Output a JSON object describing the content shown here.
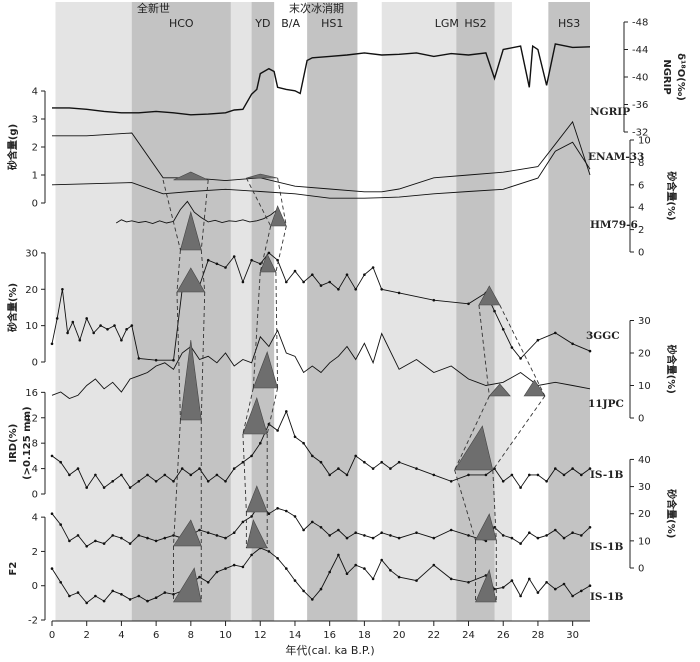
{
  "chart_data": {
    "type": "line",
    "x_axis": {
      "label": "年代(cal. ka B.P.)",
      "ticks": [
        0,
        2,
        4,
        6,
        8,
        10,
        12,
        14,
        16,
        18,
        20,
        22,
        24,
        26,
        28,
        30
      ],
      "range": [
        0,
        31
      ]
    },
    "top_group_labels": [
      "全新世",
      "末次冰消期"
    ],
    "bands": [
      {
        "label": "HCO",
        "from": 4.6,
        "to": 10.3,
        "shade": "dark"
      },
      {
        "label": "YD",
        "from": 11.5,
        "to": 12.8,
        "shade": "dark"
      },
      {
        "label": "B/A",
        "from": 12.8,
        "to": 14.7,
        "shade": "none"
      },
      {
        "label": "HS1",
        "from": 14.7,
        "to": 17.6,
        "shade": "dark"
      },
      {
        "label": "LGM",
        "from": 19.0,
        "to": 26.5,
        "shade": "light"
      },
      {
        "label": "HS2",
        "from": 23.3,
        "to": 25.5,
        "shade": "dark"
      },
      {
        "label": "HS3",
        "from": 28.6,
        "to": 31.0,
        "shade": "dark"
      }
    ],
    "holocene_span": [
      0.2,
      11.5
    ],
    "panels": [
      {
        "id": "ngrip",
        "core_label": "NGRIP",
        "axis_title_1": "NGRIP",
        "axis_title_2": "δ¹⁸O(‰)",
        "axis_side": "right",
        "ticks": [
          -32,
          -36,
          -40,
          -44,
          -48
        ],
        "range": [
          -32,
          -48
        ],
        "x": [
          0,
          1,
          2,
          3,
          4,
          5,
          6,
          7,
          8,
          9,
          10,
          10.5,
          11,
          11.5,
          11.8,
          12,
          12.5,
          12.8,
          13,
          13.5,
          14,
          14.3,
          14.7,
          15,
          16,
          17,
          18,
          19,
          20,
          21,
          22,
          23,
          24,
          25,
          25.5,
          26,
          27,
          27.5,
          27.7,
          28,
          28.5,
          29,
          30,
          31
        ],
        "y": [
          -35.5,
          -35.5,
          -35.3,
          -35,
          -34.8,
          -34.8,
          -35,
          -34.8,
          -34.5,
          -34.6,
          -34.8,
          -35.2,
          -35.3,
          -37.5,
          -38.2,
          -40.5,
          -41.2,
          -40.8,
          -38.5,
          -38.2,
          -38.0,
          -37.6,
          -42.4,
          -42.8,
          -43,
          -43.2,
          -43.5,
          -43.2,
          -43.3,
          -43.5,
          -43.0,
          -43.4,
          -43.2,
          -43.5,
          -39.8,
          -44,
          -44.5,
          -38.5,
          -44.5,
          -44,
          -38.8,
          -44.8,
          -44.3,
          -44.4
        ]
      },
      {
        "id": "enam33",
        "core_label": "ENAM-33",
        "axis_side": "right",
        "axis_title": "砂含量(%)",
        "ticks": [
          0,
          2,
          4,
          6,
          8,
          10
        ],
        "range": [
          0,
          10
        ],
        "x": [
          0,
          4.6,
          6.4,
          8,
          10,
          12,
          14,
          16,
          18,
          20,
          22,
          24,
          26,
          28,
          29,
          30,
          31
        ],
        "y": [
          6.0,
          6.2,
          5.2,
          5.4,
          5.6,
          5.4,
          5.2,
          4.8,
          4.8,
          4.9,
          5.2,
          5.4,
          5.6,
          6.6,
          9.0,
          9.8,
          7.4
        ]
      },
      {
        "id": "enam33_left",
        "axis_side": "left",
        "axis_title": "砂含量(g)",
        "ticks": [
          0,
          1,
          2,
          3,
          4
        ],
        "range": [
          0,
          4
        ],
        "x": [
          0,
          2,
          4.6,
          6.4,
          8,
          10,
          12,
          14,
          16,
          18,
          19,
          20,
          22,
          24,
          26,
          28,
          29,
          30,
          31
        ],
        "y": [
          2.4,
          2.4,
          2.5,
          0.9,
          0.9,
          0.8,
          0.9,
          0.6,
          0.5,
          0.4,
          0.4,
          0.5,
          0.9,
          1.0,
          1.1,
          1.3,
          2.1,
          2.9,
          1.0
        ]
      },
      {
        "id": "hm796",
        "core_label": "HM79-6",
        "axis_side": "none",
        "x": [
          3.7,
          4,
          4.3,
          4.6,
          5,
          5.4,
          5.8,
          6.2,
          6.6,
          7,
          7.4,
          7.8,
          8.2,
          8.6,
          9,
          9.4,
          9.8,
          10.2,
          10.6,
          11,
          11.4,
          11.8,
          12.2,
          12.6,
          13
        ],
        "y": [
          5.0,
          5.6,
          5.2,
          5.4,
          5.1,
          5.3,
          4.9,
          5.4,
          5.0,
          5.3,
          7.5,
          9.0,
          7.0,
          6.0,
          5.2,
          5.5,
          5.1,
          5.4,
          5.3,
          5.6,
          5.2,
          5.4,
          5.8,
          6.5,
          7.5
        ]
      },
      {
        "id": "core3ggc",
        "core_label": "3GGC",
        "axis_side": "left",
        "axis_title": "砂含量(%)",
        "ticks": [
          0,
          10,
          20,
          30
        ],
        "range": [
          0,
          33
        ],
        "x": [
          0,
          0.3,
          0.6,
          0.9,
          1.2,
          1.6,
          2,
          2.4,
          2.8,
          3.2,
          3.6,
          4,
          4.3,
          4.6,
          5,
          6,
          7,
          7.5,
          8,
          8.5,
          9,
          9.5,
          10,
          10.5,
          11,
          11.5,
          12,
          12.5,
          13,
          13.5,
          14,
          14.5,
          15,
          15.5,
          16,
          16.5,
          17,
          17.5,
          18,
          18.5,
          19,
          20,
          22,
          24,
          25,
          25.5,
          26,
          26.5,
          27,
          28,
          29,
          30,
          31
        ],
        "y": [
          5,
          12,
          20,
          8,
          11,
          6,
          12,
          8,
          10,
          9,
          10,
          6,
          9,
          10,
          1,
          0.5,
          0.5,
          20,
          21,
          21,
          28,
          27,
          26,
          29,
          22,
          28,
          27,
          30,
          28,
          22,
          25,
          22,
          24,
          21,
          22,
          20,
          24,
          20,
          24,
          26,
          20,
          19,
          17,
          16,
          19,
          14,
          9,
          4,
          1,
          6,
          8,
          5,
          3
        ]
      },
      {
        "id": "core11jpc",
        "core_label": "11JPC",
        "axis_side": "right",
        "axis_title": "砂含量(%)",
        "ticks": [
          0,
          10,
          20,
          30
        ],
        "range": [
          0,
          32
        ],
        "x": [
          0,
          0.5,
          1,
          1.5,
          2,
          2.5,
          3,
          3.5,
          4,
          4.5,
          5,
          5.5,
          6,
          6.5,
          7,
          7.5,
          8,
          8.5,
          9,
          9.5,
          10,
          10.5,
          11,
          11.5,
          12,
          12.5,
          13,
          13.5,
          14,
          14.5,
          15,
          15.5,
          16,
          16.5,
          17,
          17.5,
          18,
          18.5,
          19,
          20,
          21,
          22,
          23,
          24,
          25,
          26,
          27,
          28,
          29,
          30,
          31
        ],
        "y": [
          7,
          8,
          6,
          7,
          10,
          12,
          9,
          11,
          8,
          12,
          13,
          14,
          16,
          17,
          15,
          20,
          22,
          18,
          19,
          17,
          20,
          16,
          18,
          17,
          25,
          22,
          27,
          20,
          19,
          14,
          16,
          14,
          17,
          19,
          22,
          18,
          23,
          17,
          26,
          15,
          18,
          14,
          16,
          12,
          10,
          11,
          14,
          10,
          11,
          10,
          9
        ]
      },
      {
        "id": "ird",
        "core_label": "IS-1B",
        "axis_side": "left",
        "axis_title": "IRD(%)",
        "axis_title_2": "(>0.125 mm)",
        "ticks": [
          0,
          4,
          8,
          12,
          16
        ],
        "range": [
          0,
          17
        ],
        "x": [
          0,
          0.5,
          1,
          1.5,
          2,
          2.5,
          3,
          3.5,
          4,
          4.5,
          5,
          5.5,
          6,
          6.5,
          7,
          7.5,
          8,
          8.5,
          9,
          9.5,
          10,
          10.5,
          11,
          11.5,
          12,
          12.5,
          13,
          13.5,
          14,
          14.5,
          15,
          15.5,
          16,
          16.5,
          17,
          17.5,
          18,
          18.5,
          19,
          19.5,
          20,
          21,
          22,
          23,
          24,
          25,
          25.5,
          26,
          26.5,
          27,
          27.5,
          28,
          28.5,
          29,
          29.5,
          30,
          30.5,
          31
        ],
        "y": [
          6,
          5,
          3,
          4,
          1,
          3,
          1,
          2,
          3,
          1,
          2,
          3,
          2,
          3,
          2,
          4,
          3,
          4,
          2,
          3,
          2,
          4,
          5,
          6,
          8,
          11,
          10,
          13,
          9,
          8,
          6,
          5,
          3,
          4,
          3,
          6,
          5,
          4,
          5,
          4,
          5,
          4,
          3,
          2,
          3,
          3,
          4,
          2,
          3,
          1,
          3,
          3,
          2,
          4,
          3,
          4,
          3,
          4
        ]
      },
      {
        "id": "is1b_b",
        "core_label": "IS-1B",
        "axis_side": "right",
        "axis_title": "砂含量(%)",
        "ticks": [
          0,
          10,
          20,
          30,
          40
        ],
        "range": [
          0,
          42
        ],
        "x": [
          0,
          0.5,
          1,
          1.5,
          2,
          2.5,
          3,
          3.5,
          4,
          4.5,
          5,
          5.5,
          6,
          6.5,
          7,
          7.5,
          8,
          8.5,
          9,
          9.5,
          10,
          10.5,
          11,
          11.5,
          12,
          12.5,
          13,
          13.5,
          14,
          14.5,
          15,
          15.5,
          16,
          16.5,
          17,
          17.5,
          18,
          18.5,
          19,
          19.5,
          20,
          21,
          22,
          23,
          24,
          25,
          25.5,
          26,
          26.5,
          27,
          27.5,
          28,
          28.5,
          29,
          29.5,
          30,
          30.5,
          31
        ],
        "y": [
          20,
          16,
          10,
          12,
          8,
          10,
          9,
          12,
          11,
          9,
          12,
          11,
          10,
          11,
          12,
          11,
          12,
          14,
          13,
          12,
          11,
          13,
          17,
          19,
          24,
          20,
          22,
          21,
          19,
          14,
          17,
          15,
          12,
          14,
          11,
          13,
          12,
          11,
          13,
          12,
          11,
          13,
          11,
          14,
          12,
          10,
          15,
          12,
          11,
          9,
          13,
          11,
          12,
          14,
          11,
          13,
          12,
          15
        ]
      },
      {
        "id": "f2",
        "core_label": "IS-1B",
        "axis_side": "left",
        "axis_title": "F2",
        "ticks": [
          -2,
          0,
          2,
          4
        ],
        "range": [
          -2,
          4.3
        ],
        "x": [
          0,
          0.5,
          1,
          1.5,
          2,
          2.5,
          3,
          3.5,
          4,
          4.5,
          5,
          5.5,
          6,
          6.5,
          7,
          7.5,
          8,
          8.5,
          9,
          9.5,
          10,
          10.5,
          11,
          11.5,
          12,
          12.5,
          13,
          13.5,
          14,
          14.5,
          15,
          15.5,
          16,
          16.5,
          17,
          17.5,
          18,
          18.5,
          19,
          19.5,
          20,
          21,
          22,
          23,
          24,
          25,
          25.5,
          26,
          26.5,
          27,
          27.5,
          28,
          28.5,
          29,
          29.5,
          30,
          30.5,
          31
        ],
        "y": [
          1.0,
          0.2,
          -0.6,
          -0.4,
          -1.0,
          -0.6,
          -0.9,
          -0.3,
          -0.5,
          -0.8,
          -0.6,
          -0.9,
          -0.7,
          -0.4,
          -0.5,
          -0.3,
          0.1,
          0.5,
          0.2,
          0.8,
          1.0,
          1.2,
          1.1,
          1.8,
          2.2,
          2.0,
          1.6,
          1.0,
          0.3,
          -0.3,
          -0.8,
          -0.2,
          0.8,
          1.8,
          0.7,
          1.2,
          1.0,
          0.4,
          1.5,
          0.9,
          0.5,
          0.3,
          1.2,
          0.4,
          0.2,
          0.6,
          -0.2,
          -0.1,
          0.3,
          -0.6,
          0.4,
          -0.4,
          0.2,
          -0.2,
          0.1,
          -0.6,
          -0.3,
          0.0
        ]
      }
    ]
  }
}
